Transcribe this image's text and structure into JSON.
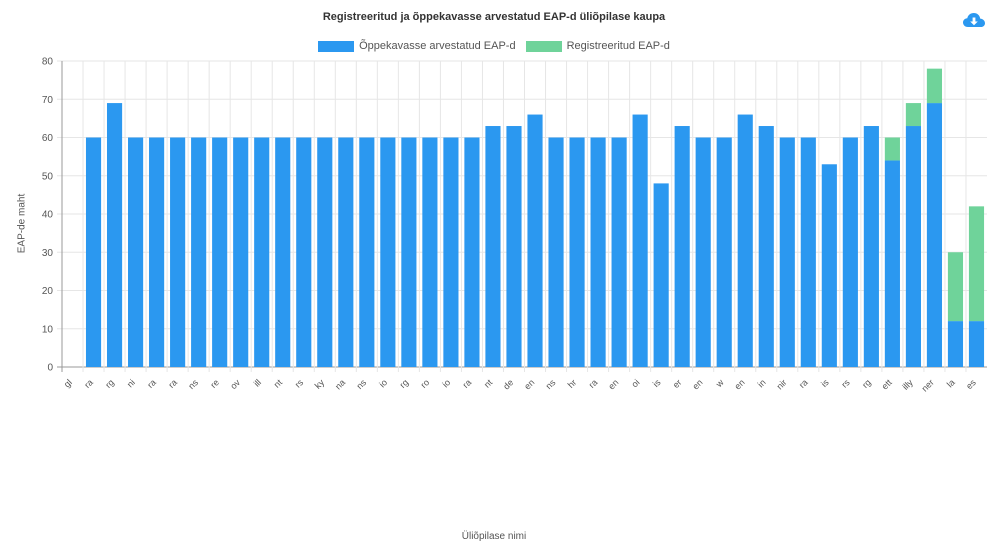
{
  "chart_data": {
    "type": "bar",
    "stacked": true,
    "title": "Registreeritud ja õppekavasse arvestatud EAP-d üliõpilase kaupa",
    "xlabel": "Üliõpilase nimi",
    "ylabel": "EAP-de maht",
    "ylim": [
      0,
      80
    ],
    "yticks": [
      0,
      10,
      20,
      30,
      40,
      50,
      60,
      70,
      80
    ],
    "grid": true,
    "legend_position": "top",
    "categories": [
      "gl",
      "ra",
      "rg",
      "ni",
      "ra",
      "ra",
      "ns",
      "re",
      "ov",
      "ill",
      "nt",
      "rs",
      "ky",
      "na",
      "ns",
      "io",
      "rg",
      "ro",
      "io",
      "ra",
      "nt",
      "de",
      "en",
      "ns",
      "hr",
      "ra",
      "en",
      "oi",
      "is",
      "er",
      "en",
      "w",
      "en",
      "in",
      "nir",
      "ra",
      "is",
      "rs",
      "rg",
      "ett",
      "illy",
      "ner",
      "la",
      "es"
    ],
    "series": [
      {
        "name": "Õppekavasse arvestatud EAP-d",
        "color": "#2b98f0",
        "values": [
          0,
          60,
          69,
          60,
          60,
          60,
          60,
          60,
          60,
          60,
          60,
          60,
          60,
          60,
          60,
          60,
          60,
          60,
          60,
          60,
          63,
          63,
          66,
          60,
          60,
          60,
          60,
          66,
          48,
          63,
          60,
          60,
          66,
          63,
          60,
          60,
          53,
          60,
          63,
          54,
          63,
          69,
          12,
          12
        ]
      },
      {
        "name": "Registreeritud EAP-d",
        "color": "#6fd39a",
        "values": [
          0,
          0,
          0,
          0,
          0,
          0,
          0,
          0,
          0,
          0,
          0,
          0,
          0,
          0,
          0,
          0,
          0,
          0,
          0,
          0,
          0,
          0,
          0,
          0,
          0,
          0,
          0,
          0,
          0,
          0,
          0,
          0,
          0,
          0,
          0,
          0,
          0,
          0,
          0,
          6,
          6,
          9,
          18,
          30
        ]
      }
    ]
  },
  "toolbar": {
    "download_icon": "cloud-download-icon",
    "download_color": "#2b98f0"
  }
}
